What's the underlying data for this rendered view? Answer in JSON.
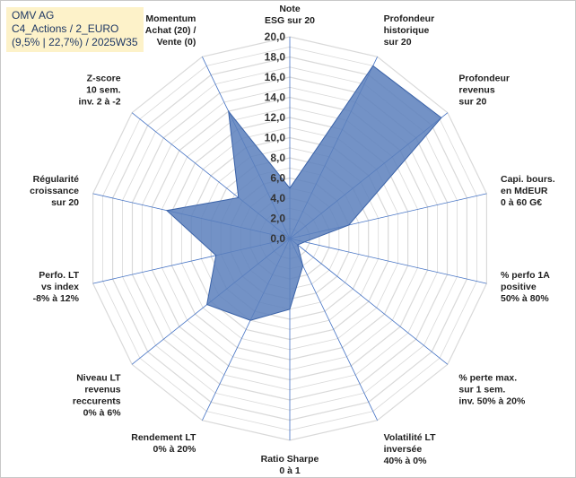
{
  "title_box": {
    "line1": "OMV AG",
    "line2": "C4_Actions / 2_EURO",
    "line3": "(9,5% | 22,7%) / 2025W35"
  },
  "colors": {
    "fill": "#5b7fbc",
    "stroke": "#3a62a8",
    "grid": "#d9d9d9",
    "spoke": "#4472c4",
    "title_bg": "#fdf2c9",
    "title_text": "#1f3864"
  },
  "chart_data": {
    "type": "radar",
    "rmin": 0,
    "rmax": 20,
    "tick_values": [
      0,
      2,
      4,
      6,
      8,
      10,
      12,
      14,
      16,
      18,
      20
    ],
    "tick_labels": [
      "0,0",
      "2,0",
      "4,0",
      "6,0",
      "8,0",
      "10,0",
      "12,0",
      "14,0",
      "16,0",
      "18,0",
      "20,0"
    ],
    "axes": [
      [
        "Note",
        "ESG sur 20"
      ],
      [
        "Profondeur",
        "historique",
        "sur 20"
      ],
      [
        "Profondeur",
        "revenus",
        "sur 20"
      ],
      [
        "Capi. bours.",
        "en MdEUR",
        "0 à 60 G€"
      ],
      [
        "% perfo 1A",
        "positive",
        "50% à 80%"
      ],
      [
        "% perte max.",
        "sur 1 sem.",
        "inv. 50% à 20%"
      ],
      [
        "Volatilité LT",
        "inversée",
        "40% à 0%"
      ],
      [
        "Ratio Sharpe",
        "0 à 1"
      ],
      [
        "Rendement LT",
        "0% à 20%"
      ],
      [
        "Niveau LT",
        "revenus",
        "reccurents",
        "0% à 6%"
      ],
      [
        "Perfo. LT",
        "vs index",
        "-8% à 12%"
      ],
      [
        "Régularité",
        "croissance",
        "sur 20"
      ],
      [
        "Z-score",
        "10 sem.",
        "inv. 2 à -2"
      ],
      [
        "Momentum",
        "Achat (20) /",
        "Vente (0)"
      ]
    ],
    "series": [
      {
        "values": [
          5.0,
          19.0,
          19.2,
          6.0,
          1.5,
          1.0,
          3.0,
          7.0,
          9.0,
          10.5,
          7.5,
          12.5,
          6.5,
          14.0
        ]
      }
    ],
    "grid": true,
    "legend": "none"
  }
}
